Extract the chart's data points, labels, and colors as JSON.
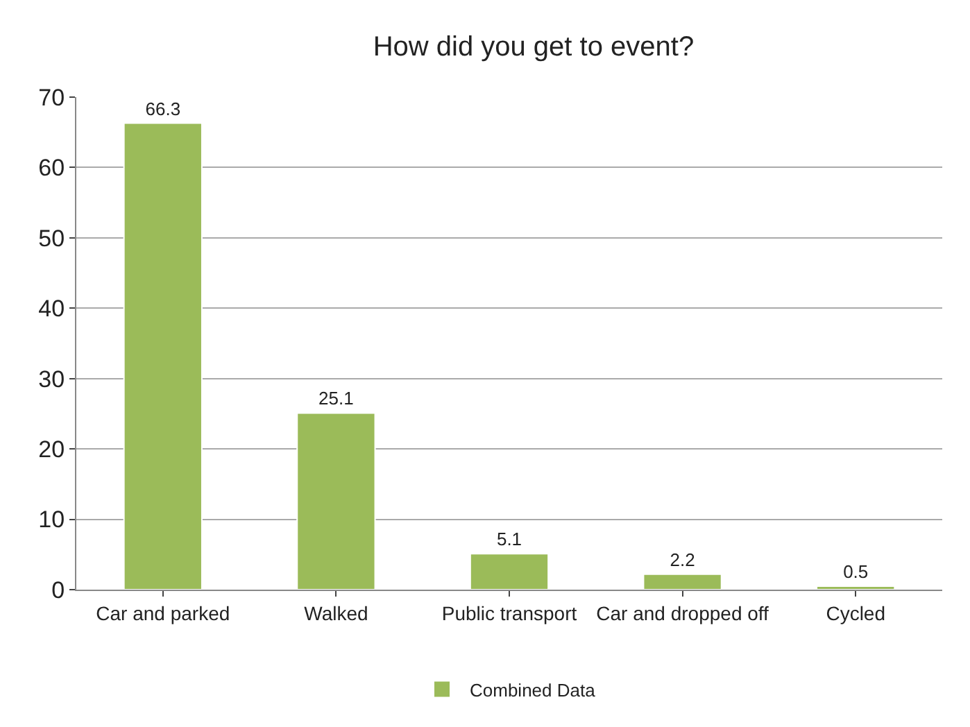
{
  "chart_data": {
    "type": "bar",
    "title": "How did you get to event?",
    "categories": [
      "Car and parked",
      "Walked",
      "Public transport",
      "Car and dropped off",
      "Cycled"
    ],
    "series": [
      {
        "name": "Combined Data",
        "color": "#9bbb59",
        "values": [
          66.3,
          25.1,
          5.1,
          2.2,
          0.5
        ]
      }
    ],
    "ylim": [
      0,
      70
    ],
    "yticks": [
      0,
      10,
      20,
      30,
      40,
      50,
      60,
      70
    ],
    "grid": "y",
    "legend": "bottom",
    "data_labels": true
  }
}
